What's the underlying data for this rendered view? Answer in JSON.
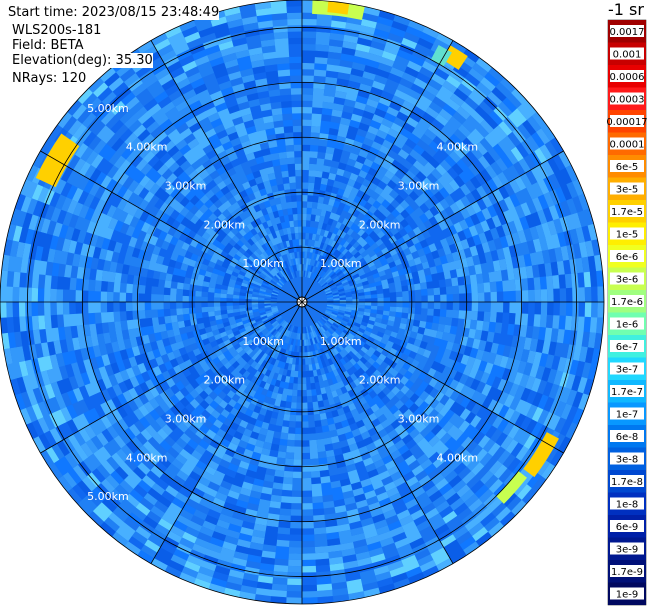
{
  "header": {
    "start_time": "Start time: 2023/08/15 23:48:49",
    "instrument": "WLS200s-181",
    "field": "Field: BETA",
    "elevation": "Elevation(deg): 35.30",
    "nrays": "NRays: 120"
  },
  "chart_data": {
    "type": "heatmap",
    "projection": "polar-ppi",
    "field": "BETA",
    "elevation_deg": 35.3,
    "n_rays": 120,
    "max_range_km": 5.5,
    "range_rings_km": [
      1,
      2,
      3,
      4,
      5
    ],
    "range_ring_labels": [
      "1.00km",
      "2.00km",
      "3.00km",
      "4.00km",
      "5.00km"
    ],
    "radial_spokes_deg": [
      0,
      30,
      60,
      90,
      120,
      150,
      180,
      210,
      240,
      270,
      300,
      330
    ],
    "dominant_value": "1e-7",
    "colorbar": {
      "unit": "-1 sr",
      "tick_labels": [
        "0.0017",
        "0.001",
        "0.0006",
        "0.0003",
        "0.00017",
        "0.0001",
        "6e-5",
        "3e-5",
        "1.7e-5",
        "1e-5",
        "6e-6",
        "3e-6",
        "1.7e-6",
        "1e-6",
        "6e-7",
        "3e-7",
        "1.7e-7",
        "1e-7",
        "6e-8",
        "3e-8",
        "1.7e-8",
        "1e-8",
        "6e-9",
        "3e-9",
        "1.7e-9",
        "1e-9"
      ],
      "colors": [
        "#a00000",
        "#c80000",
        "#e80000",
        "#ff1a1a",
        "#ff4400",
        "#ff6a00",
        "#ff8c00",
        "#ffae00",
        "#ffd000",
        "#ffee00",
        "#f0ff20",
        "#c8ff50",
        "#a0ff80",
        "#70ffb0",
        "#40f0e0",
        "#20d8ff",
        "#10b8ff",
        "#0898ff",
        "#0078f0",
        "#0060e0",
        "#0048d0",
        "#0030c0",
        "#0020a8",
        "#001890",
        "#001078",
        "#000860"
      ]
    }
  }
}
